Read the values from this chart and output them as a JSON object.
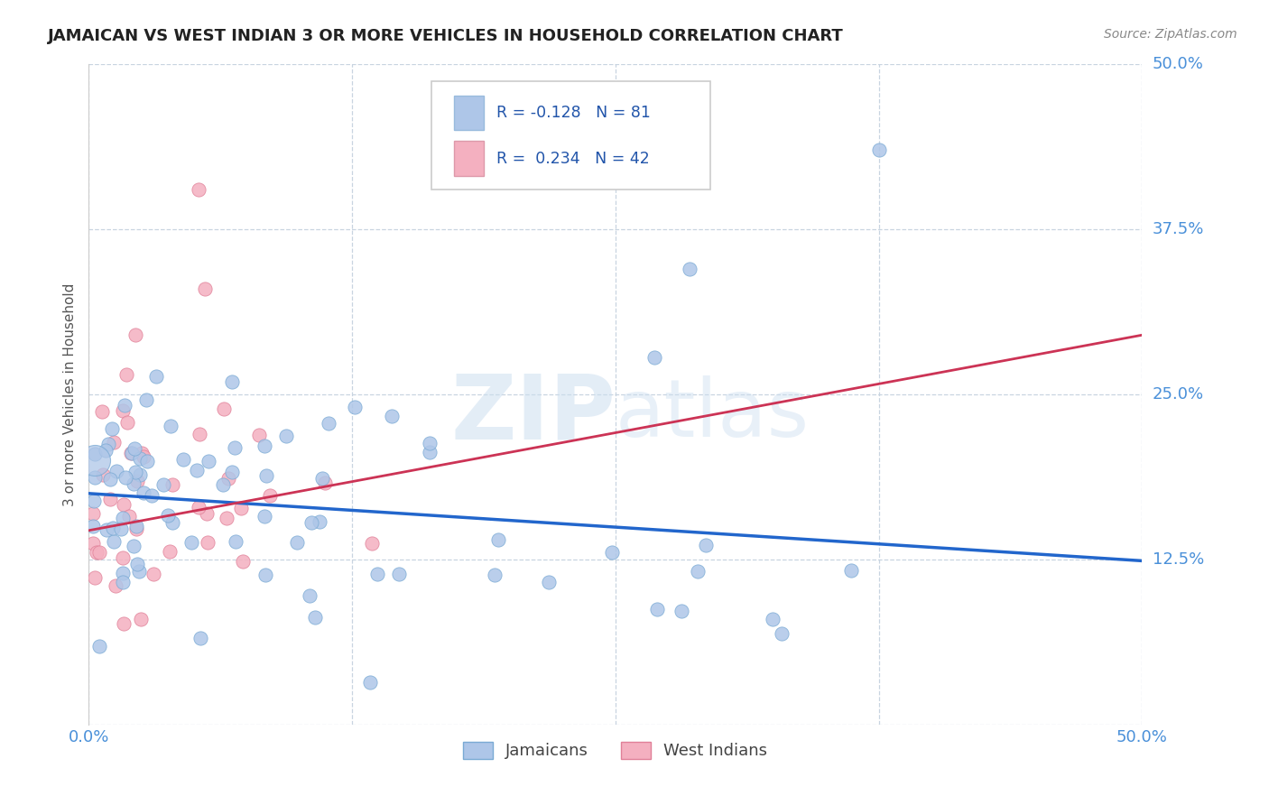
{
  "title": "JAMAICAN VS WEST INDIAN 3 OR MORE VEHICLES IN HOUSEHOLD CORRELATION CHART",
  "source_text": "Source: ZipAtlas.com",
  "ylabel": "3 or more Vehicles in Household",
  "xlim": [
    0.0,
    0.5
  ],
  "ylim": [
    0.0,
    0.5
  ],
  "xticks": [
    0.0,
    0.125,
    0.25,
    0.375,
    0.5
  ],
  "xticklabels": [
    "0.0%",
    "",
    "",
    "",
    "50.0%"
  ],
  "ytick_positions": [
    0.0,
    0.125,
    0.25,
    0.375,
    0.5
  ],
  "yticklabels_right": [
    "",
    "12.5%",
    "25.0%",
    "37.5%",
    "50.0%"
  ],
  "jamaicans_color": "#aec6e8",
  "jamaicans_edge_color": "#7aaad4",
  "west_indians_color": "#f4b0c0",
  "west_indians_edge_color": "#e08098",
  "jamaicans_R": -0.128,
  "jamaicans_N": 81,
  "west_indians_R": 0.234,
  "west_indians_N": 42,
  "legend_text_color": "#2255aa",
  "legend_border_color": "#cccccc",
  "jamaicans_trend_color": "#2266cc",
  "west_indians_trend_color": "#cc3355",
  "background_color": "#ffffff",
  "grid_color": "#c8d4e0",
  "title_color": "#222222",
  "axis_label_color": "#555555",
  "tick_label_color": "#4a90d9",
  "source_color": "#888888",
  "j_trend_start_y": 0.175,
  "j_trend_end_y": 0.124,
  "w_trend_start_y": 0.147,
  "w_trend_end_y": 0.295
}
